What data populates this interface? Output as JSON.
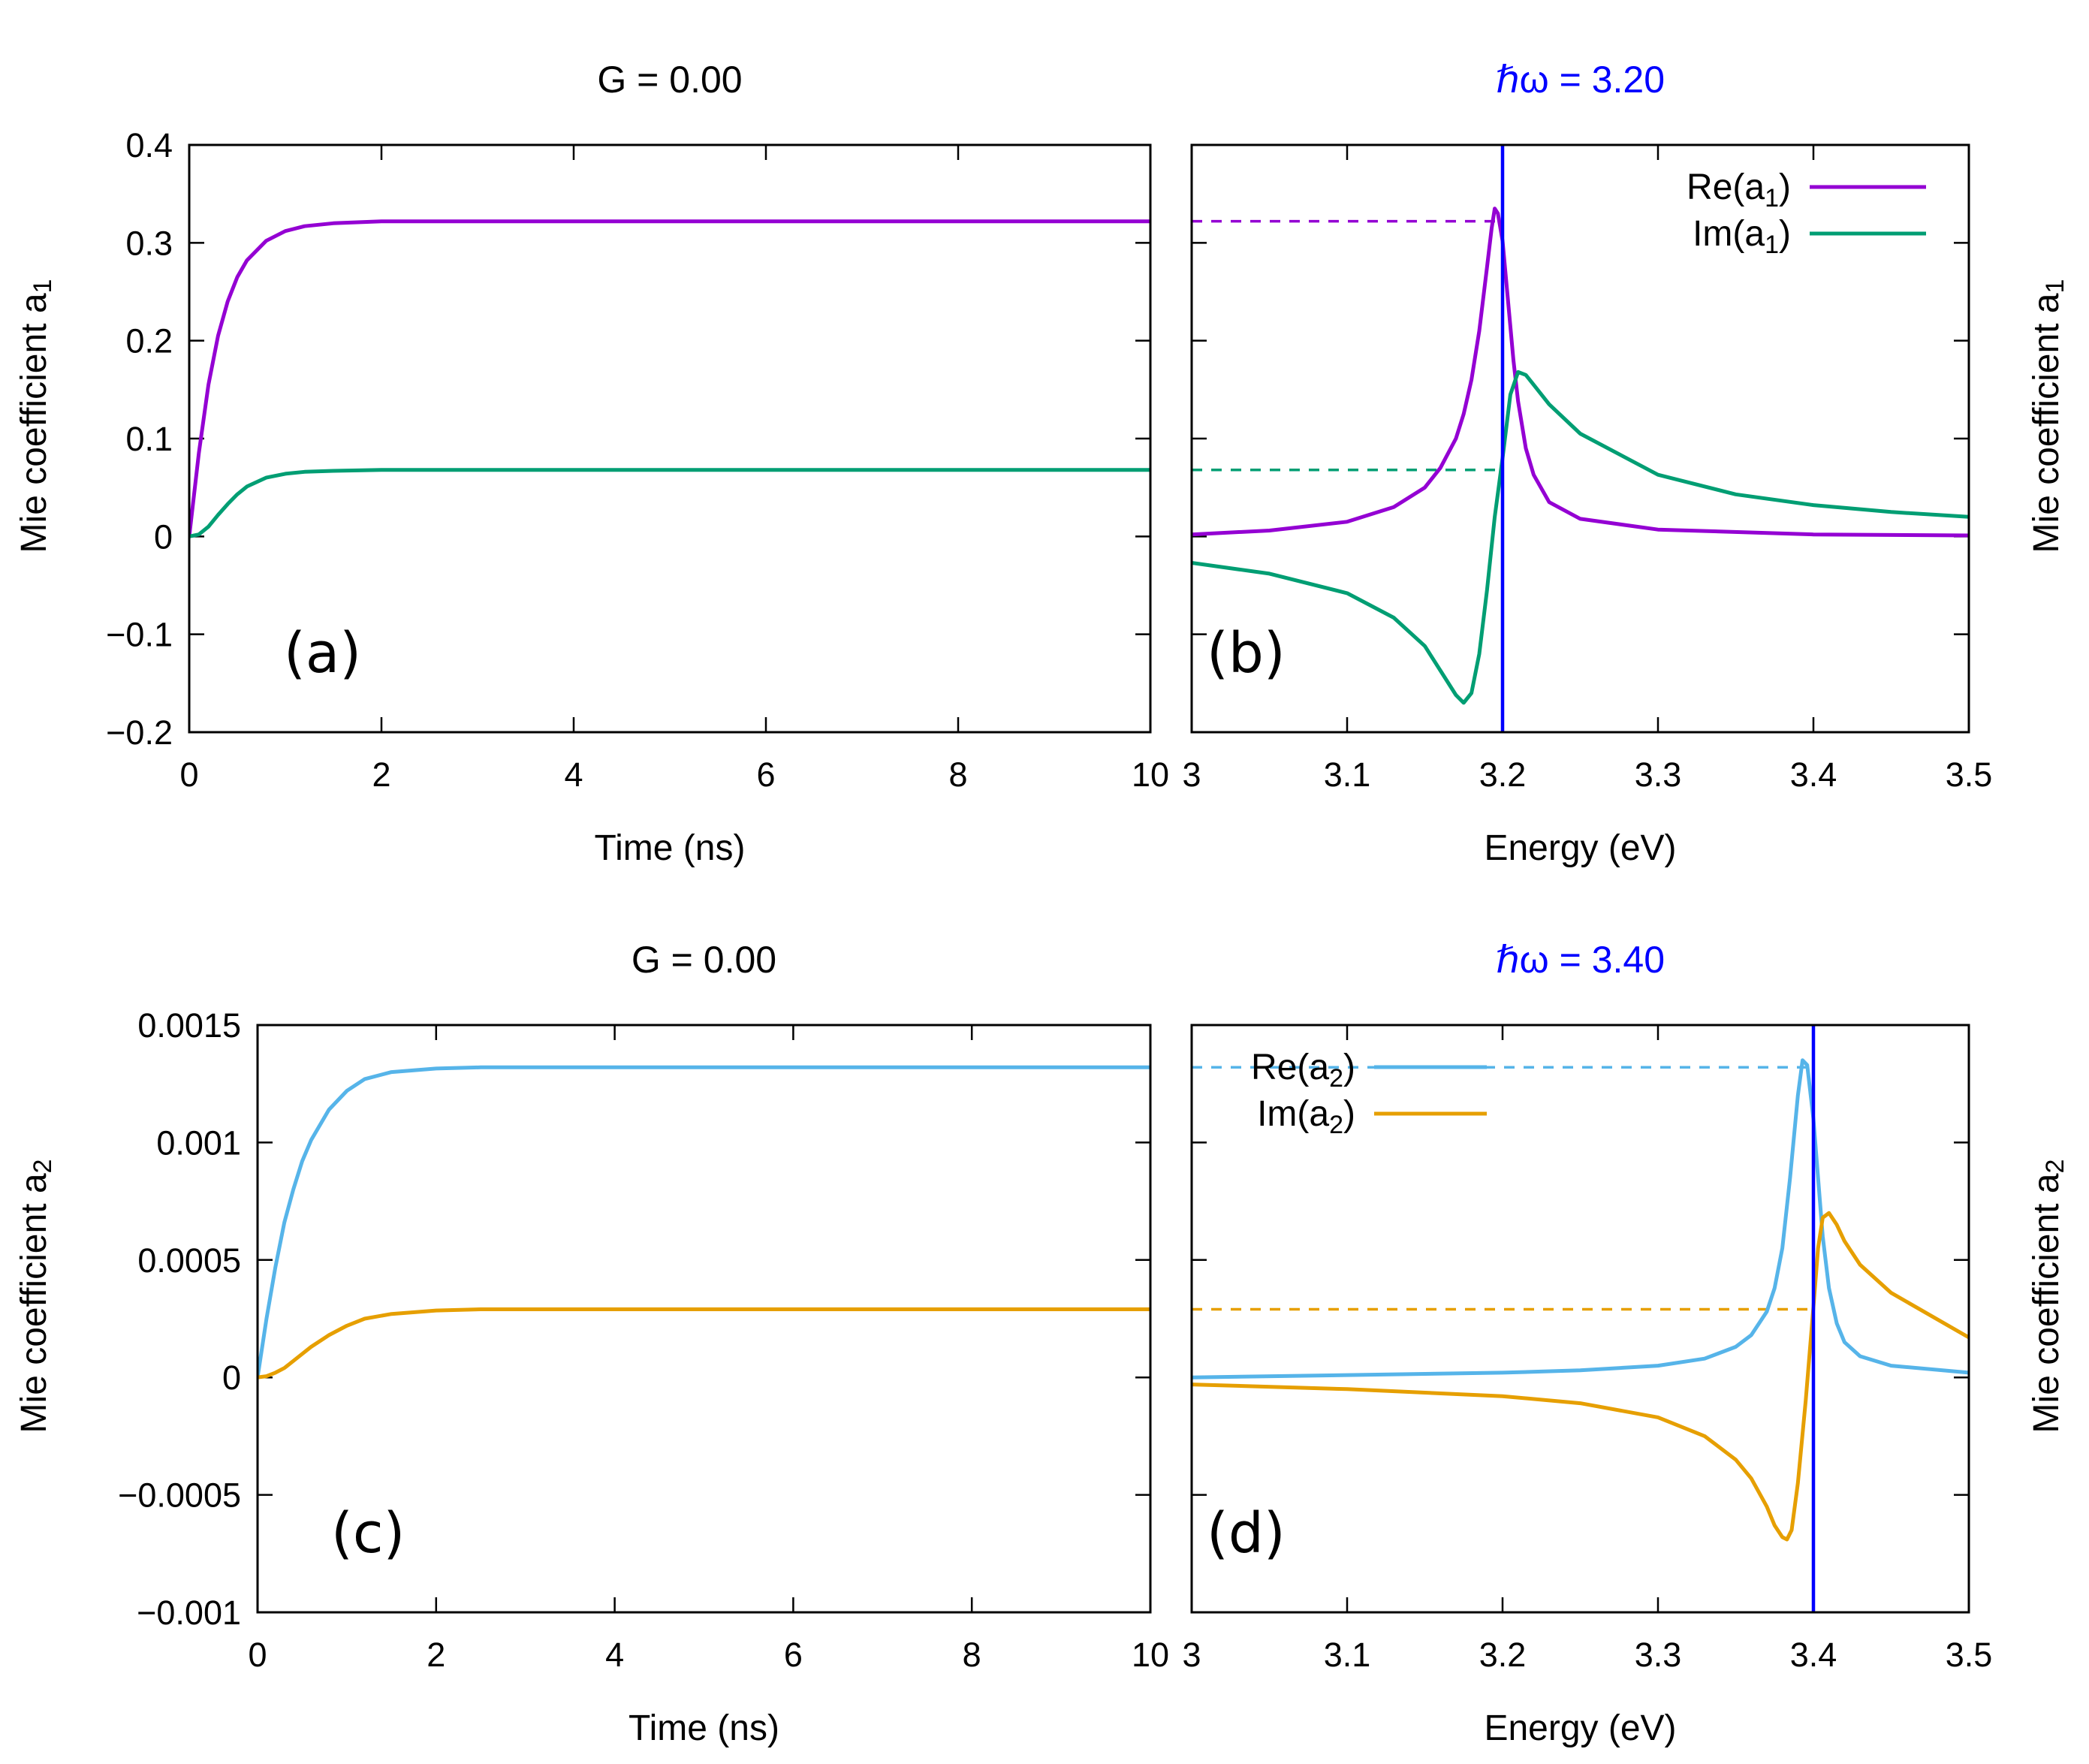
{
  "chart_data": [
    {
      "id": "a",
      "type": "line",
      "panel_label": "(a)",
      "title": "G = 0.00",
      "xlabel": "Time (ns)",
      "ylabel": "Mie coefficient  a",
      "ylabel_subscript": "1",
      "xlim": [
        0,
        10
      ],
      "ylim": [
        -0.2,
        0.4
      ],
      "xticks": [
        0,
        2,
        4,
        6,
        8,
        10
      ],
      "xtick_labels": [
        "0",
        "2",
        "4",
        "6",
        "8",
        "10"
      ],
      "yticks": [
        -0.2,
        -0.1,
        0,
        0.1,
        0.2,
        0.3,
        0.4
      ],
      "ytick_labels": [
        "−0.2",
        "−0.1",
        "0",
        "0.1",
        "0.2",
        "0.3",
        "0.4"
      ],
      "series": [
        {
          "color": "#9400d3",
          "x": [
            0,
            0.1,
            0.2,
            0.3,
            0.4,
            0.5,
            0.6,
            0.8,
            1.0,
            1.2,
            1.5,
            2,
            3,
            4,
            6,
            8,
            10
          ],
          "y": [
            0,
            0.085,
            0.155,
            0.205,
            0.24,
            0.265,
            0.282,
            0.302,
            0.312,
            0.317,
            0.32,
            0.322,
            0.322,
            0.322,
            0.322,
            0.322,
            0.322
          ]
        },
        {
          "color": "#009e73",
          "x": [
            0,
            0.1,
            0.2,
            0.3,
            0.4,
            0.5,
            0.6,
            0.8,
            1.0,
            1.2,
            1.5,
            2,
            3,
            4,
            6,
            8,
            10
          ],
          "y": [
            0,
            0.002,
            0.01,
            0.022,
            0.033,
            0.043,
            0.051,
            0.06,
            0.064,
            0.066,
            0.067,
            0.068,
            0.068,
            0.068,
            0.068,
            0.068,
            0.068
          ]
        }
      ]
    },
    {
      "id": "b",
      "type": "line",
      "panel_label": "(b)",
      "title": "ℏω = 3.20",
      "xlabel": "Energy (eV)",
      "ylabel": "Mie coefficient  a",
      "ylabel_subscript": "1",
      "xlim": [
        3,
        3.5
      ],
      "ylim": [
        -0.2,
        0.4
      ],
      "xticks": [
        3,
        3.1,
        3.2,
        3.3,
        3.4,
        3.5
      ],
      "xtick_labels": [
        "3",
        "3.1",
        "3.2",
        "3.3",
        "3.4",
        "3.5"
      ],
      "yticks": [
        -0.2,
        -0.1,
        0,
        0.1,
        0.2,
        0.3,
        0.4
      ],
      "marker_x": 3.2,
      "marker_color": "#0000ff",
      "legend_position": "top-right",
      "legend": [
        {
          "base": "Re(a",
          "sub": "1",
          "close": ")",
          "color": "#9400d3"
        },
        {
          "base": "Im(a",
          "sub": "1",
          "close": ")",
          "color": "#009e73"
        }
      ],
      "dashed": [
        {
          "color": "#9400d3",
          "y": 0.322
        },
        {
          "color": "#009e73",
          "y": 0.068
        }
      ],
      "series": [
        {
          "name": "Re(a1)",
          "color": "#9400d3",
          "x": [
            3.0,
            3.05,
            3.1,
            3.13,
            3.15,
            3.16,
            3.17,
            3.175,
            3.18,
            3.185,
            3.19,
            3.193,
            3.195,
            3.197,
            3.2,
            3.203,
            3.207,
            3.21,
            3.215,
            3.22,
            3.23,
            3.25,
            3.3,
            3.4,
            3.5
          ],
          "y": [
            0.002,
            0.006,
            0.015,
            0.03,
            0.05,
            0.07,
            0.1,
            0.125,
            0.16,
            0.21,
            0.275,
            0.315,
            0.335,
            0.33,
            0.302,
            0.25,
            0.18,
            0.138,
            0.09,
            0.063,
            0.035,
            0.018,
            0.007,
            0.002,
            0.001
          ]
        },
        {
          "name": "Im(a1)",
          "color": "#009e73",
          "x": [
            3.0,
            3.05,
            3.1,
            3.13,
            3.15,
            3.16,
            3.17,
            3.175,
            3.18,
            3.185,
            3.19,
            3.195,
            3.2,
            3.205,
            3.21,
            3.215,
            3.22,
            3.23,
            3.25,
            3.3,
            3.35,
            3.4,
            3.45,
            3.5
          ],
          "y": [
            -0.027,
            -0.038,
            -0.058,
            -0.083,
            -0.112,
            -0.137,
            -0.162,
            -0.17,
            -0.16,
            -0.12,
            -0.055,
            0.02,
            0.08,
            0.145,
            0.168,
            0.165,
            0.155,
            0.135,
            0.105,
            0.063,
            0.043,
            0.032,
            0.025,
            0.02
          ]
        }
      ]
    },
    {
      "id": "c",
      "type": "line",
      "panel_label": "(c)",
      "title": "G = 0.00",
      "xlabel": "Time (ns)",
      "ylabel": "Mie coefficient  a",
      "ylabel_subscript": "2",
      "xlim": [
        0,
        10
      ],
      "ylim": [
        -0.001,
        0.0015
      ],
      "xticks": [
        0,
        2,
        4,
        6,
        8,
        10
      ],
      "xtick_labels": [
        "0",
        "2",
        "4",
        "6",
        "8",
        "10"
      ],
      "yticks": [
        -0.001,
        -0.0005,
        0,
        0.0005,
        0.001,
        0.0015
      ],
      "ytick_labels": [
        "−0.001",
        "−0.0005",
        "0",
        "0.0005",
        "0.001",
        "0.0015"
      ],
      "series": [
        {
          "color": "#56b4e9",
          "x": [
            0,
            0.1,
            0.2,
            0.3,
            0.4,
            0.5,
            0.6,
            0.8,
            1.0,
            1.2,
            1.5,
            2,
            2.5,
            3,
            4,
            6,
            8,
            10
          ],
          "y": [
            0,
            0.00025,
            0.00047,
            0.00066,
            0.0008,
            0.00092,
            0.00101,
            0.00114,
            0.00122,
            0.00127,
            0.0013,
            0.001315,
            0.00132,
            0.00132,
            0.00132,
            0.00132,
            0.00132,
            0.00132
          ]
        },
        {
          "color": "#e69f00",
          "x": [
            0,
            0.1,
            0.2,
            0.3,
            0.4,
            0.5,
            0.6,
            0.8,
            1.0,
            1.2,
            1.5,
            2,
            2.5,
            3,
            4,
            6,
            8,
            10
          ],
          "y": [
            0,
            5e-06,
            2e-05,
            4e-05,
            7e-05,
            0.0001,
            0.00013,
            0.00018,
            0.00022,
            0.00025,
            0.00027,
            0.000285,
            0.00029,
            0.00029,
            0.00029,
            0.00029,
            0.00029,
            0.00029
          ]
        }
      ]
    },
    {
      "id": "d",
      "type": "line",
      "panel_label": "(d)",
      "title": "ℏω = 3.40",
      "xlabel": "Energy (eV)",
      "ylabel": "Mie coefficient  a",
      "ylabel_subscript": "2",
      "xlim": [
        3,
        3.5
      ],
      "ylim": [
        -0.001,
        0.0015
      ],
      "xticks": [
        3,
        3.1,
        3.2,
        3.3,
        3.4,
        3.5
      ],
      "xtick_labels": [
        "3",
        "3.1",
        "3.2",
        "3.3",
        "3.4",
        "3.5"
      ],
      "yticks": [
        -0.001,
        -0.0005,
        0,
        0.0005,
        0.001,
        0.0015
      ],
      "marker_x": 3.4,
      "marker_color": "#0000ff",
      "legend_position": "top-left",
      "legend": [
        {
          "base": "Re(a",
          "sub": "2",
          "close": ")",
          "color": "#56b4e9"
        },
        {
          "base": "Im(a",
          "sub": "2",
          "close": ")",
          "color": "#e69f00"
        }
      ],
      "dashed": [
        {
          "color": "#56b4e9",
          "y": 0.00132
        },
        {
          "color": "#e69f00",
          "y": 0.00029
        }
      ],
      "series": [
        {
          "name": "Re(a2)",
          "color": "#56b4e9",
          "x": [
            3.0,
            3.1,
            3.2,
            3.25,
            3.3,
            3.33,
            3.35,
            3.36,
            3.37,
            3.375,
            3.38,
            3.385,
            3.39,
            3.393,
            3.396,
            3.4,
            3.403,
            3.406,
            3.41,
            3.415,
            3.42,
            3.43,
            3.45,
            3.5
          ],
          "y": [
            0.0,
            1e-05,
            2e-05,
            3e-05,
            5e-05,
            8e-05,
            0.00013,
            0.00018,
            0.00028,
            0.00038,
            0.00055,
            0.00085,
            0.0012,
            0.00135,
            0.00133,
            0.0011,
            0.00085,
            0.0006,
            0.00038,
            0.00023,
            0.00015,
            9e-05,
            5e-05,
            2e-05
          ]
        },
        {
          "name": "Im(a2)",
          "color": "#e69f00",
          "x": [
            3.0,
            3.1,
            3.2,
            3.25,
            3.3,
            3.33,
            3.35,
            3.36,
            3.37,
            3.375,
            3.38,
            3.383,
            3.386,
            3.39,
            3.395,
            3.4,
            3.403,
            3.406,
            3.41,
            3.415,
            3.42,
            3.43,
            3.45,
            3.5
          ],
          "y": [
            -3e-05,
            -5e-05,
            -8e-05,
            -0.00011,
            -0.00017,
            -0.00025,
            -0.00035,
            -0.00043,
            -0.00055,
            -0.00063,
            -0.00068,
            -0.00069,
            -0.00065,
            -0.00045,
            -0.0001,
            0.0003,
            0.00055,
            0.00068,
            0.0007,
            0.00065,
            0.00058,
            0.00048,
            0.00036,
            0.00017
          ]
        }
      ]
    }
  ]
}
